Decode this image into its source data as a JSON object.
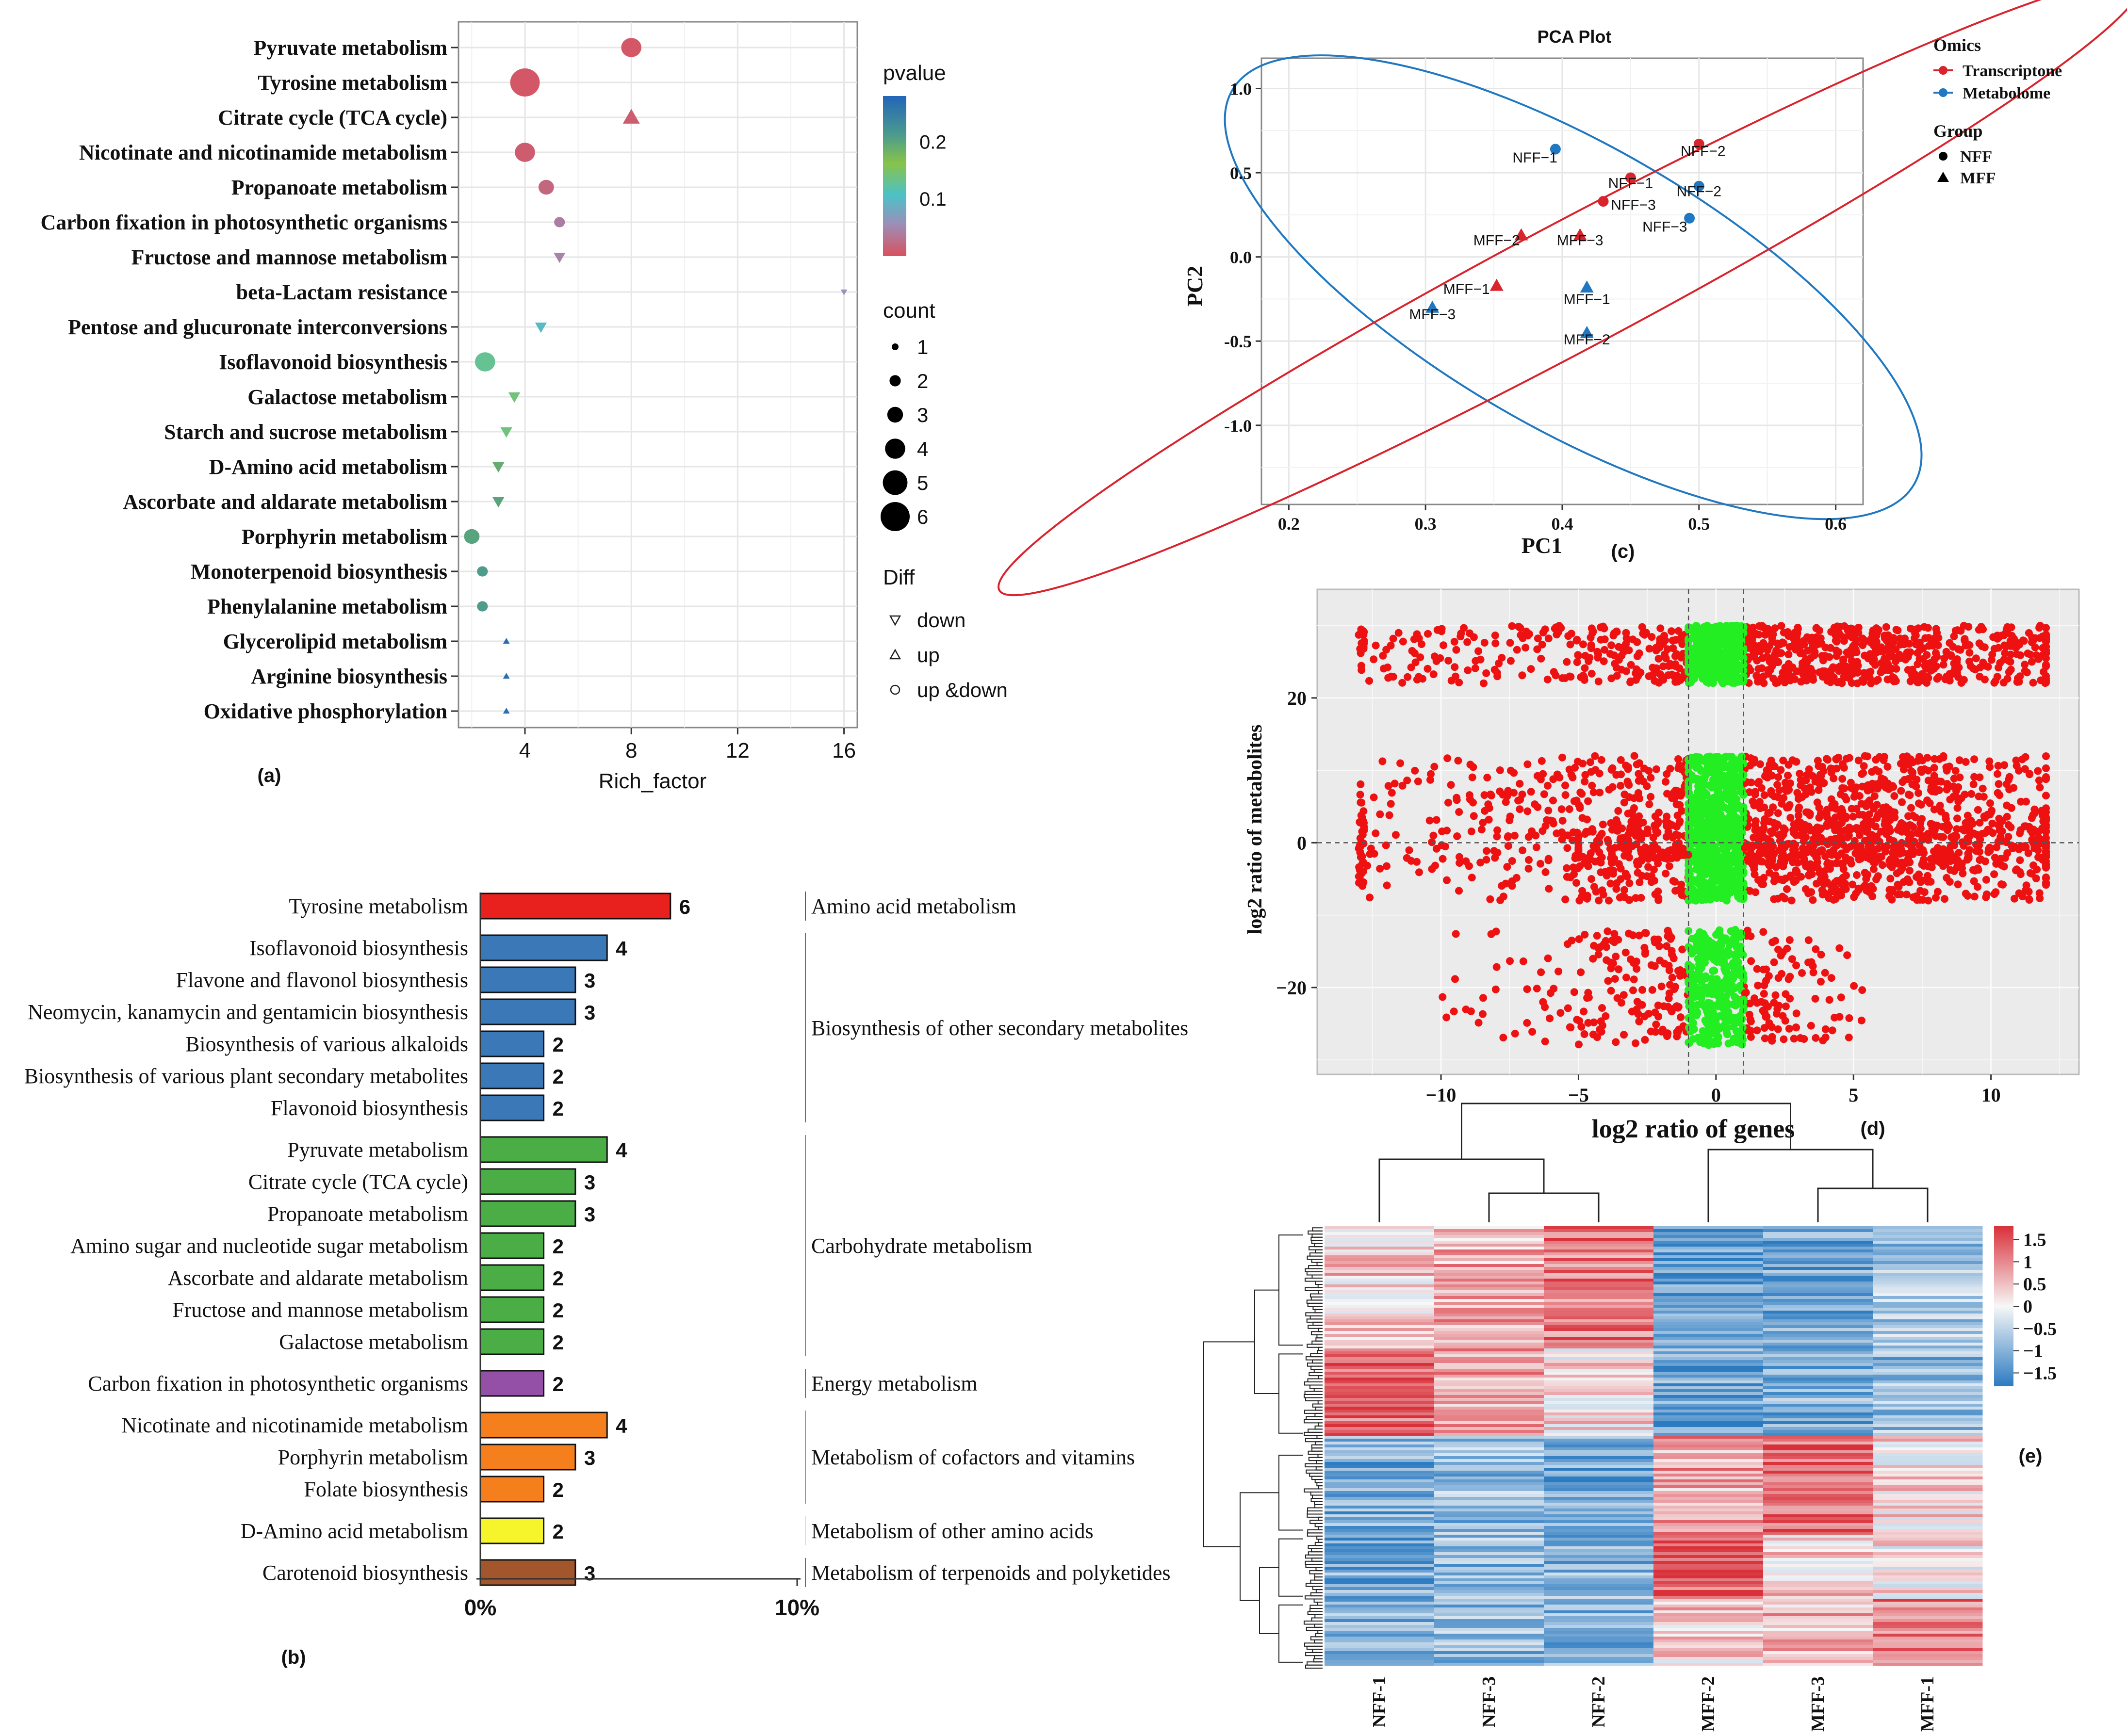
{
  "chart_data": [
    {
      "panel": "a",
      "type": "scatter",
      "panel_label": "(a)",
      "xlabel": "Rich_factor",
      "x_ticks": [
        4,
        8,
        12,
        16
      ],
      "xlim": [
        1.5,
        16.5
      ],
      "pathways": [
        {
          "name": "Pyruvate metabolism",
          "rich_factor": 8.0,
          "pvalue": 0.005,
          "count": 4,
          "diff": "up &down"
        },
        {
          "name": "Tyrosine metabolism",
          "rich_factor": 4.0,
          "pvalue": 0.005,
          "count": 6,
          "diff": "up &down"
        },
        {
          "name": "Citrate cycle (TCA cycle)",
          "rich_factor": 8.0,
          "pvalue": 0.01,
          "count": 3,
          "diff": "up"
        },
        {
          "name": "Nicotinate and nicotinamide metabolism",
          "rich_factor": 4.0,
          "pvalue": 0.01,
          "count": 4,
          "diff": "up &down"
        },
        {
          "name": "Propanoate metabolism",
          "rich_factor": 4.8,
          "pvalue": 0.02,
          "count": 3,
          "diff": "up &down"
        },
        {
          "name": "Carbon fixation in photosynthetic organisms",
          "rich_factor": 5.3,
          "pvalue": 0.04,
          "count": 2,
          "diff": "up &down"
        },
        {
          "name": "Fructose and mannose metabolism",
          "rich_factor": 5.3,
          "pvalue": 0.045,
          "count": 2,
          "diff": "down"
        },
        {
          "name": "beta-Lactam resistance",
          "rich_factor": 16.0,
          "pvalue": 0.06,
          "count": 1,
          "diff": "down"
        },
        {
          "name": "Pentose and glucuronate interconversions",
          "rich_factor": 4.6,
          "pvalue": 0.1,
          "count": 2,
          "diff": "down"
        },
        {
          "name": "Isoflavonoid biosynthesis",
          "rich_factor": 2.5,
          "pvalue": 0.13,
          "count": 4,
          "diff": "up &down"
        },
        {
          "name": "Galactose metabolism",
          "rich_factor": 3.6,
          "pvalue": 0.14,
          "count": 2,
          "diff": "down"
        },
        {
          "name": "Starch and sucrose metabolism",
          "rich_factor": 3.3,
          "pvalue": 0.14,
          "count": 2,
          "diff": "down"
        },
        {
          "name": "D-Amino acid metabolism",
          "rich_factor": 3.0,
          "pvalue": 0.19,
          "count": 2,
          "diff": "down"
        },
        {
          "name": "Ascorbate and aldarate metabolism",
          "rich_factor": 3.0,
          "pvalue": 0.2,
          "count": 2,
          "diff": "down"
        },
        {
          "name": "Porphyrin metabolism",
          "rich_factor": 2.0,
          "pvalue": 0.2,
          "count": 3,
          "diff": "up &down"
        },
        {
          "name": "Monoterpenoid biosynthesis",
          "rich_factor": 2.4,
          "pvalue": 0.21,
          "count": 2,
          "diff": "up &down"
        },
        {
          "name": "Phenylalanine metabolism",
          "rich_factor": 2.4,
          "pvalue": 0.21,
          "count": 2,
          "diff": "up &down"
        },
        {
          "name": "Glycerolipid metabolism",
          "rich_factor": 3.3,
          "pvalue": 0.27,
          "count": 1,
          "diff": "up"
        },
        {
          "name": "Arginine biosynthesis",
          "rich_factor": 3.3,
          "pvalue": 0.27,
          "count": 1,
          "diff": "up"
        },
        {
          "name": "Oxidative phosphorylation",
          "rich_factor": 3.3,
          "pvalue": 0.27,
          "count": 1,
          "diff": "up"
        }
      ],
      "legend_pvalue": {
        "title": "pvalue",
        "ticks": [
          "0.2",
          "0.1"
        ],
        "tick_values": [
          0.2,
          0.1
        ],
        "range": [
          0.0,
          0.28
        ]
      },
      "legend_count": {
        "title": "count",
        "labels": [
          "1",
          "2",
          "3",
          "4",
          "5",
          "6"
        ]
      },
      "legend_diff": {
        "title": "Diff",
        "labels": [
          "down",
          "up",
          "up &down"
        ]
      }
    },
    {
      "panel": "b",
      "type": "bar",
      "panel_label": "(b)",
      "x_ticks": [
        "0%",
        "10%"
      ],
      "x_max_count": 10,
      "groups": [
        {
          "name": "Amino acid metabolism",
          "color": "#e8201e",
          "items": [
            {
              "name": "Tyrosine metabolism",
              "value": 6
            }
          ]
        },
        {
          "name": "Biosynthesis of other secondary metabolites",
          "color": "#3a78b8",
          "items": [
            {
              "name": "Isoflavonoid biosynthesis",
              "value": 4
            },
            {
              "name": "Flavone and flavonol biosynthesis",
              "value": 3
            },
            {
              "name": "Neomycin, kanamycin and gentamicin biosynthesis",
              "value": 3
            },
            {
              "name": "Biosynthesis of various alkaloids",
              "value": 2
            },
            {
              "name": "Biosynthesis of various plant secondary metabolites",
              "value": 2
            },
            {
              "name": "Flavonoid biosynthesis",
              "value": 2
            }
          ]
        },
        {
          "name": "Carbohydrate metabolism",
          "color": "#4aad45",
          "items": [
            {
              "name": "Pyruvate metabolism",
              "value": 4
            },
            {
              "name": "Citrate cycle (TCA cycle)",
              "value": 3
            },
            {
              "name": "Propanoate metabolism",
              "value": 3
            },
            {
              "name": "Amino sugar and nucleotide sugar metabolism",
              "value": 2
            },
            {
              "name": "Ascorbate and aldarate metabolism",
              "value": 2
            },
            {
              "name": "Fructose and mannose metabolism",
              "value": 2
            },
            {
              "name": "Galactose metabolism",
              "value": 2
            }
          ]
        },
        {
          "name": "Energy metabolism",
          "color": "#9350a6",
          "items": [
            {
              "name": "Carbon fixation in photosynthetic organisms",
              "value": 2
            }
          ]
        },
        {
          "name": "Metabolism of cofactors and vitamins",
          "color": "#f57f1d",
          "items": [
            {
              "name": "Nicotinate and nicotinamide metabolism",
              "value": 4
            },
            {
              "name": "Porphyrin metabolism",
              "value": 3
            },
            {
              "name": "Folate biosynthesis",
              "value": 2
            }
          ]
        },
        {
          "name": "Metabolism of other amino acids",
          "color": "#f6f42b",
          "items": [
            {
              "name": "D-Amino acid metabolism",
              "value": 2
            }
          ]
        },
        {
          "name": "Metabolism of terpenoids and polyketides",
          "color": "#a3562b",
          "items": [
            {
              "name": "Carotenoid biosynthesis",
              "value": 3
            }
          ]
        }
      ]
    },
    {
      "panel": "c",
      "type": "scatter",
      "panel_label": "(c)",
      "title": "PCA Plot",
      "xlabel": "PC1",
      "ylabel": "PC2",
      "xlim": [
        0.18,
        0.62
      ],
      "ylim": [
        -1.47,
        1.18
      ],
      "x_ticks": [
        0.2,
        0.3,
        0.4,
        0.5,
        0.6
      ],
      "x_tick_labels": [
        "0.2",
        "0.3",
        "0.4",
        "0.5",
        "0.6"
      ],
      "y_ticks": [
        1.0,
        0.5,
        0.0,
        -0.5,
        -1.0
      ],
      "y_tick_labels": [
        "1.0",
        "0.5",
        "0.0",
        "-0.5",
        "-1.0"
      ],
      "legend_omics": {
        "title": "Omics",
        "items": [
          {
            "name": "Transcriptone",
            "color": "#d9232d"
          },
          {
            "name": "Metabolome",
            "color": "#1f78c1"
          }
        ]
      },
      "legend_group": {
        "title": "Group",
        "items": [
          "NFF",
          "MFF"
        ]
      },
      "points": [
        {
          "label": "NFF−1",
          "x": 0.395,
          "y": 0.64,
          "omics": "Metabolome",
          "group": "NFF",
          "lx": -0.015,
          "ly": -0.08
        },
        {
          "label": "NFF−2",
          "x": 0.5,
          "y": 0.42,
          "omics": "Metabolome",
          "group": "NFF",
          "lx": 0.0,
          "ly": -0.06
        },
        {
          "label": "NFF−3",
          "x": 0.493,
          "y": 0.23,
          "omics": "Metabolome",
          "group": "NFF",
          "lx": -0.018,
          "ly": -0.08
        },
        {
          "label": "MFF−1",
          "x": 0.418,
          "y": -0.18,
          "omics": "Metabolome",
          "group": "MFF",
          "lx": 0.0,
          "ly": -0.1
        },
        {
          "label": "MFF−2",
          "x": 0.418,
          "y": -0.45,
          "omics": "Metabolome",
          "group": "MFF",
          "lx": 0.0,
          "ly": -0.07
        },
        {
          "label": "MFF−3",
          "x": 0.305,
          "y": -0.3,
          "omics": "Metabolome",
          "group": "MFF",
          "lx": 0.0,
          "ly": -0.07
        },
        {
          "label": "NFF−1",
          "x": 0.45,
          "y": 0.47,
          "omics": "Transcriptone",
          "group": "NFF",
          "lx": 0.0,
          "ly": -0.06
        },
        {
          "label": "NFF−2",
          "x": 0.5,
          "y": 0.67,
          "omics": "Transcriptone",
          "group": "NFF",
          "lx": 0.003,
          "ly": -0.07
        },
        {
          "label": "NFF−3",
          "x": 0.43,
          "y": 0.33,
          "omics": "Transcriptone",
          "group": "NFF",
          "lx": 0.022,
          "ly": -0.05
        },
        {
          "label": "MFF−2",
          "x": 0.37,
          "y": 0.13,
          "omics": "Transcriptone",
          "group": "MFF",
          "lx": -0.018,
          "ly": -0.06
        },
        {
          "label": "MFF−3",
          "x": 0.413,
          "y": 0.13,
          "omics": "Transcriptone",
          "group": "MFF",
          "lx": 0.0,
          "ly": -0.06
        },
        {
          "label": "MFF−1",
          "x": 0.352,
          "y": -0.17,
          "omics": "Transcriptone",
          "group": "MFF",
          "lx": -0.022,
          "ly": -0.05
        }
      ],
      "ellipses": [
        {
          "omics": "Metabolome",
          "cx": 0.408,
          "cy": -0.18,
          "rx": 0.18,
          "ry": 1.12,
          "tilt_deg": 30
        },
        {
          "omics": "Transcriptone",
          "cx": 0.405,
          "cy": -0.18,
          "rx": 0.295,
          "ry": 0.5,
          "tilt_deg": -28
        }
      ]
    },
    {
      "panel": "d",
      "type": "scatter",
      "panel_label": "(d)",
      "xlabel": "log2 ratio of  genes",
      "ylabel": "log2 ratio of metabolites",
      "xlim": [
        -14.5,
        13.2
      ],
      "ylim": [
        -32,
        35
      ],
      "x_ticks": [
        -10,
        -5,
        0,
        5,
        10
      ],
      "x_tick_labels": [
        "−10",
        "−5",
        "0",
        "5",
        "10"
      ],
      "y_ticks": [
        20,
        0,
        -20
      ],
      "y_tick_labels": [
        "20",
        "0",
        "−20"
      ],
      "thresholds": {
        "x": [
          -1,
          1
        ],
        "y": [
          0
        ]
      },
      "colors": {
        "significant": "#ee1111",
        "not_significant": "#22ee22"
      },
      "density_notes": "dense point cloud; points with |log2 ratio of genes| <= 1 drawn green, others red",
      "clusters": [
        {
          "y_min": 22,
          "y_max": 30,
          "x_min": -13,
          "x_max": 12,
          "density": "high between -4 and 11"
        },
        {
          "y_min": -8,
          "y_max": 12,
          "x_min": -13,
          "x_max": 12,
          "density": "high between -5 and 12"
        },
        {
          "y_min": -28,
          "y_max": -12,
          "x_min": -10,
          "x_max": 5.5,
          "density": "medium between -4 and 3"
        }
      ]
    },
    {
      "panel": "e",
      "type": "heatmap",
      "panel_label": "(e)",
      "columns": [
        "NFF-1",
        "NFF-3",
        "NFF-2",
        "MFF-2",
        "MFF-3",
        "MFF-1"
      ],
      "colorbar": {
        "ticks": [
          "1.5",
          "1",
          "0.5",
          "0",
          "−0.5",
          "−1",
          "−1.5"
        ],
        "tick_values": [
          1.5,
          1,
          0.5,
          0,
          -0.5,
          -1,
          -1.5
        ],
        "range": [
          -1.8,
          1.8
        ],
        "low": "#2c7bc1",
        "mid": "#f7f7f7",
        "high": "#d9303a"
      },
      "row_blocks": [
        {
          "fraction": 0.28,
          "means": [
            0.4,
            0.7,
            1.1,
            -1.3,
            -1.2,
            -0.8
          ]
        },
        {
          "fraction": 0.2,
          "means": [
            1.3,
            0.7,
            0.3,
            -1.2,
            -1.1,
            -0.9
          ]
        },
        {
          "fraction": 0.22,
          "means": [
            -1.1,
            -0.9,
            -1.2,
            0.8,
            1.3,
            0.3
          ]
        },
        {
          "fraction": 0.15,
          "means": [
            -1.1,
            -0.9,
            -1.0,
            1.4,
            0.4,
            0.2
          ]
        },
        {
          "fraction": 0.15,
          "means": [
            -1.1,
            -0.9,
            -1.1,
            0.4,
            0.6,
            1.1
          ]
        }
      ]
    }
  ]
}
